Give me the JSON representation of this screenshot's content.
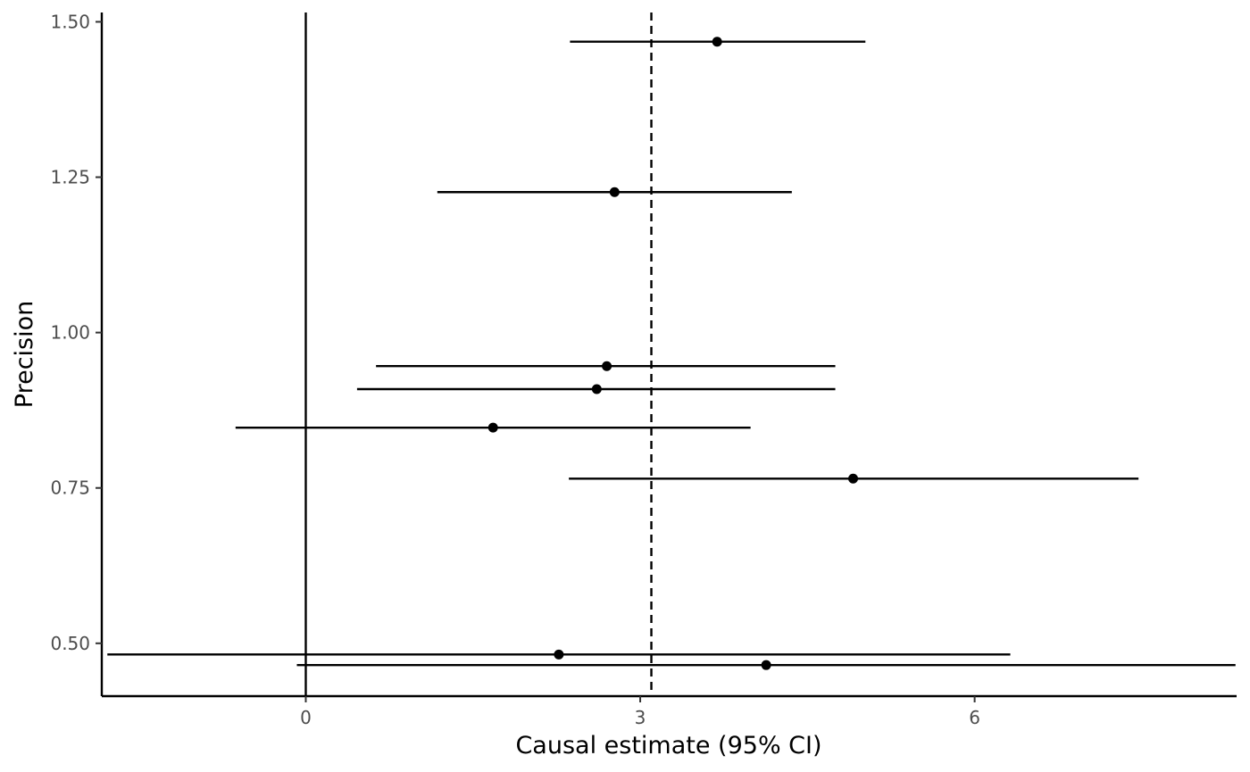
{
  "chart_data": {
    "type": "scatter",
    "title": "",
    "xlabel": "Causal estimate (95% CI)",
    "ylabel": "Precision",
    "xlim": [
      -1.83,
      8.35
    ],
    "ylim": [
      0.415,
      1.515
    ],
    "x_ticks": [
      0,
      3,
      6
    ],
    "x_tick_labels": [
      "0",
      "3",
      "6"
    ],
    "y_ticks": [
      0.5,
      0.75,
      1.0,
      1.25,
      1.5
    ],
    "y_tick_labels": [
      "0.50",
      "0.75",
      "1.00",
      "1.25",
      "1.50"
    ],
    "grid": false,
    "legend": "none",
    "reference_lines": [
      {
        "axis": "x",
        "value": 0,
        "style": "solid"
      },
      {
        "axis": "x",
        "value": 3.1,
        "style": "dashed"
      }
    ],
    "points": [
      {
        "estimate": 3.69,
        "precision": 1.468,
        "ci_low": 2.37,
        "ci_high": 5.02
      },
      {
        "estimate": 2.77,
        "precision": 1.226,
        "ci_low": 1.18,
        "ci_high": 4.36
      },
      {
        "estimate": 2.7,
        "precision": 0.946,
        "ci_low": 0.63,
        "ci_high": 4.75
      },
      {
        "estimate": 2.61,
        "precision": 0.909,
        "ci_low": 0.46,
        "ci_high": 4.75
      },
      {
        "estimate": 1.68,
        "precision": 0.847,
        "ci_low": -0.63,
        "ci_high": 3.99
      },
      {
        "estimate": 4.91,
        "precision": 0.765,
        "ci_low": 2.36,
        "ci_high": 7.47
      },
      {
        "estimate": 2.27,
        "precision": 0.482,
        "ci_low": -1.78,
        "ci_high": 6.32
      },
      {
        "estimate": 4.13,
        "precision": 0.465,
        "ci_low": -0.08,
        "ci_high": 8.34
      }
    ],
    "colors": {
      "points": "#000000",
      "lines": "#000000",
      "tick_labels": "#4d4d4d"
    }
  }
}
